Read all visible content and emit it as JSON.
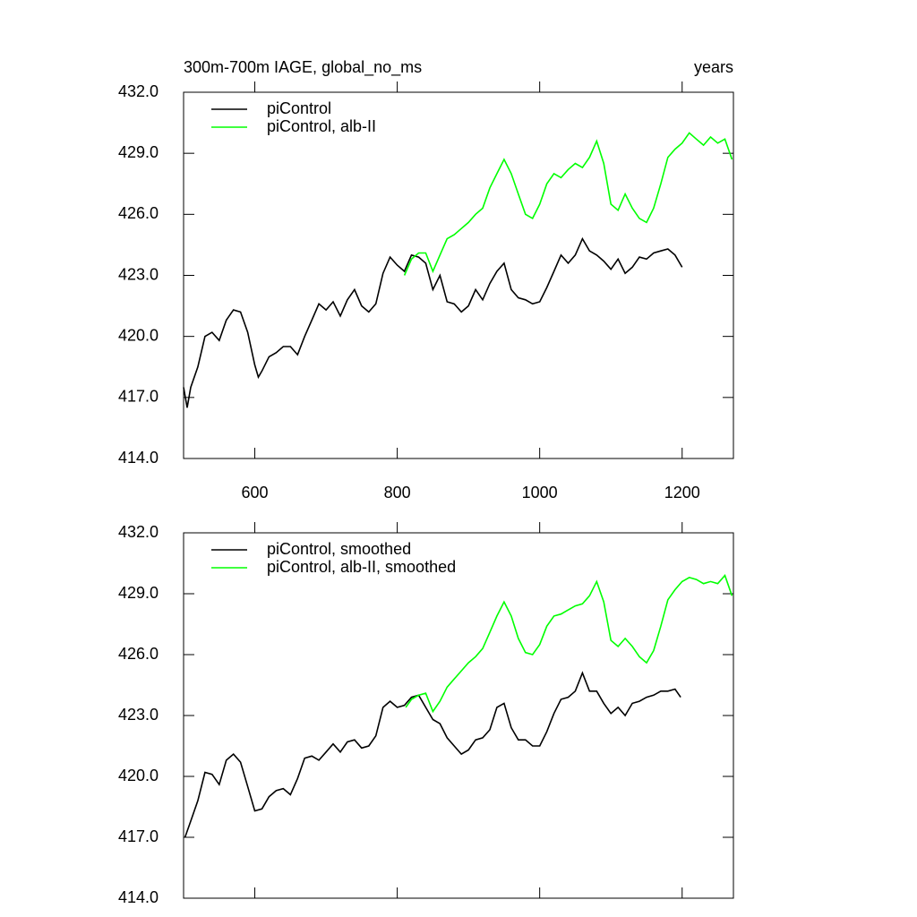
{
  "chart_data": [
    {
      "type": "line",
      "title": "300m-700m IAGE, global_no_ms",
      "units": "years",
      "xlim": [
        500,
        1272
      ],
      "xticks": [
        600,
        800,
        1000,
        1200
      ],
      "ylim": [
        414,
        432
      ],
      "yticks": [
        {
          "value": 414,
          "label": "414.0"
        },
        {
          "value": 417,
          "label": "417.0"
        },
        {
          "value": 420,
          "label": "420.0"
        },
        {
          "value": 423,
          "label": "423.0"
        },
        {
          "value": 426,
          "label": "426.0"
        },
        {
          "value": 429,
          "label": "429.0"
        },
        {
          "value": 432,
          "label": "432.0"
        }
      ],
      "series": [
        {
          "name": "piControl",
          "color": "#000000",
          "x": [
            500,
            505,
            510,
            520,
            530,
            540,
            550,
            560,
            570,
            580,
            590,
            600,
            605,
            610,
            620,
            630,
            640,
            650,
            660,
            670,
            680,
            690,
            700,
            710,
            720,
            730,
            740,
            750,
            760,
            770,
            780,
            790,
            800,
            810,
            820,
            830,
            840,
            850,
            860,
            870,
            880,
            890,
            900,
            910,
            920,
            930,
            940,
            950,
            960,
            970,
            980,
            990,
            1000,
            1010,
            1020,
            1030,
            1040,
            1050,
            1060,
            1070,
            1080,
            1090,
            1100,
            1110,
            1120,
            1130,
            1140,
            1150,
            1160,
            1170,
            1180,
            1190,
            1200
          ],
          "values": [
            417.5,
            416.5,
            417.5,
            418.5,
            420,
            420.2,
            419.8,
            420.8,
            421.3,
            421.2,
            420.2,
            418.6,
            418,
            418.3,
            419,
            419.2,
            419.5,
            419.5,
            419.1,
            420,
            420.8,
            421.6,
            421.3,
            421.7,
            421,
            421.8,
            422.3,
            421.5,
            421.2,
            421.6,
            423.1,
            423.9,
            423.5,
            423.2,
            424,
            423.9,
            423.6,
            422.3,
            423,
            421.7,
            421.6,
            421.2,
            421.5,
            422.3,
            421.8,
            422.6,
            423.2,
            423.6,
            422.3,
            421.9,
            421.8,
            421.6,
            421.7,
            422.4,
            423.2,
            424,
            423.6,
            424,
            424.8,
            424.2,
            424,
            423.7,
            423.3,
            423.8,
            423.1,
            423.4,
            423.9,
            423.8,
            424.1,
            424.2,
            424.3,
            424,
            423.4
          ]
        },
        {
          "name": "piControl, alb-II",
          "color": "#00ff00",
          "x": [
            810,
            820,
            830,
            840,
            850,
            860,
            870,
            880,
            890,
            900,
            910,
            920,
            930,
            940,
            950,
            960,
            970,
            980,
            990,
            1000,
            1010,
            1020,
            1030,
            1040,
            1050,
            1060,
            1070,
            1080,
            1090,
            1100,
            1110,
            1120,
            1130,
            1140,
            1150,
            1160,
            1170,
            1180,
            1190,
            1200,
            1210,
            1220,
            1230,
            1240,
            1250,
            1260,
            1270
          ],
          "values": [
            423,
            423.8,
            424.1,
            424.1,
            423.2,
            424,
            424.8,
            425,
            425.3,
            425.6,
            426,
            426.3,
            427.3,
            428,
            428.7,
            428,
            427,
            426,
            425.8,
            426.5,
            427.5,
            428,
            427.8,
            428.2,
            428.5,
            428.3,
            428.8,
            429.6,
            428.5,
            426.5,
            426.2,
            427,
            426.3,
            425.8,
            425.6,
            426.3,
            427.5,
            428.8,
            429.2,
            429.5,
            430,
            429.7,
            429.4,
            429.8,
            429.5,
            429.7,
            428.7
          ]
        }
      ]
    },
    {
      "type": "line",
      "xlim": [
        500,
        1272
      ],
      "ylim": [
        414,
        432
      ],
      "yticks": [
        {
          "value": 414,
          "label": "414.0"
        },
        {
          "value": 417,
          "label": "417.0"
        },
        {
          "value": 420,
          "label": "420.0"
        },
        {
          "value": 423,
          "label": "423.0"
        },
        {
          "value": 426,
          "label": "426.0"
        },
        {
          "value": 429,
          "label": "429.0"
        },
        {
          "value": 432,
          "label": "432.0"
        }
      ],
      "series": [
        {
          "name": "piControl, smoothed",
          "color": "#000000",
          "x": [
            502,
            510,
            520,
            530,
            540,
            550,
            560,
            570,
            580,
            590,
            600,
            610,
            620,
            630,
            640,
            650,
            660,
            670,
            680,
            690,
            700,
            710,
            720,
            730,
            740,
            750,
            760,
            770,
            780,
            790,
            800,
            810,
            820,
            830,
            840,
            850,
            860,
            870,
            880,
            890,
            900,
            910,
            920,
            930,
            940,
            950,
            960,
            970,
            980,
            990,
            1000,
            1010,
            1020,
            1030,
            1040,
            1050,
            1060,
            1070,
            1080,
            1090,
            1100,
            1110,
            1120,
            1130,
            1140,
            1150,
            1160,
            1170,
            1180,
            1190,
            1198
          ],
          "values": [
            417,
            417.8,
            418.8,
            420.2,
            420.1,
            419.6,
            420.8,
            421.1,
            420.7,
            419.5,
            418.3,
            418.4,
            419,
            419.3,
            419.4,
            419.1,
            419.9,
            420.9,
            421,
            420.8,
            421.2,
            421.6,
            421.2,
            421.7,
            421.8,
            421.4,
            421.5,
            422,
            423.4,
            423.7,
            423.4,
            423.5,
            423.9,
            424,
            423.4,
            422.8,
            422.6,
            421.9,
            421.5,
            421.1,
            421.3,
            421.8,
            421.9,
            422.3,
            423.4,
            423.6,
            422.4,
            421.8,
            421.8,
            421.5,
            421.5,
            422.2,
            423.1,
            423.8,
            423.9,
            424.2,
            425.1,
            424.2,
            424.2,
            423.6,
            423.1,
            423.4,
            423,
            423.6,
            423.7,
            423.9,
            424,
            424.2,
            424.2,
            424.3,
            423.9
          ]
        },
        {
          "name": "piControl, alb-II, smoothed",
          "color": "#00ff00",
          "x": [
            812,
            820,
            830,
            840,
            850,
            860,
            870,
            880,
            890,
            900,
            910,
            920,
            930,
            940,
            950,
            960,
            970,
            980,
            990,
            1000,
            1010,
            1020,
            1030,
            1040,
            1050,
            1060,
            1070,
            1080,
            1090,
            1100,
            1110,
            1120,
            1130,
            1140,
            1150,
            1160,
            1170,
            1180,
            1190,
            1200,
            1210,
            1220,
            1230,
            1240,
            1250,
            1260,
            1270
          ],
          "values": [
            423.4,
            423.8,
            424,
            424.1,
            423.2,
            423.7,
            424.4,
            424.8,
            425.2,
            425.6,
            425.9,
            426.3,
            427.1,
            427.9,
            428.6,
            427.9,
            426.8,
            426.1,
            426,
            426.5,
            427.4,
            427.9,
            428,
            428.2,
            428.4,
            428.5,
            428.9,
            429.6,
            428.6,
            426.7,
            426.4,
            426.8,
            426.4,
            425.9,
            425.6,
            426.2,
            427.4,
            428.7,
            429.2,
            429.6,
            429.8,
            429.7,
            429.5,
            429.6,
            429.5,
            429.9,
            428.9
          ]
        }
      ]
    }
  ]
}
